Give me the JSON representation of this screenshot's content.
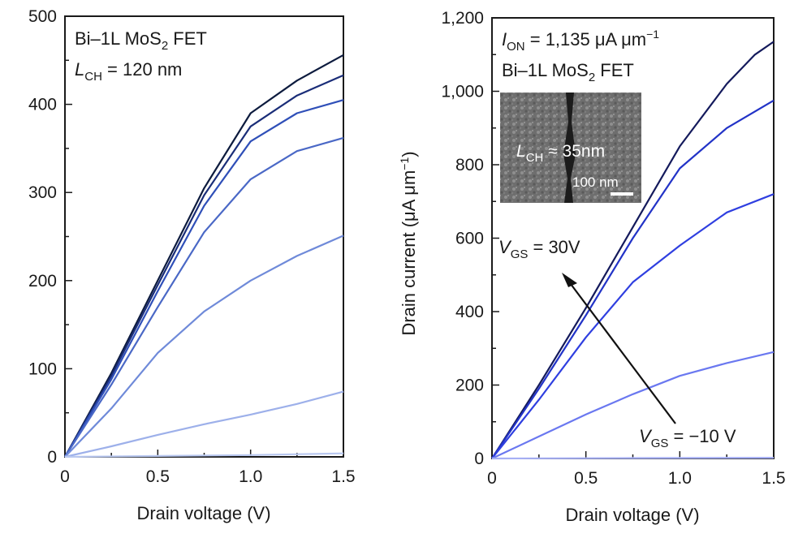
{
  "colors": {
    "c_dark": "#0d1b3e",
    "c_navy": "#1a2d78",
    "c_blue": "#2f4fb8",
    "c_mid": "#4a68c6",
    "c_light": "#6f8ad9",
    "c_pale": "#9db0ea",
    "c_faint": "#b9c8f0",
    "r_dark": "#141a5c",
    "r_blue": "#2233c7",
    "r_bright": "#2f3fe0",
    "r_light": "#6a78f0",
    "r_faint": "#a7b0f5"
  },
  "chart_data": [
    {
      "type": "line",
      "xlabel": "Drain voltage (V)",
      "ylabel": "",
      "xlim": [
        0,
        1.5
      ],
      "ylim": [
        0,
        500
      ],
      "x_ticks": [
        "0",
        "0.5",
        "1.0",
        "1.5"
      ],
      "y_ticks": [
        "0",
        "100",
        "200",
        "300",
        "400",
        "500"
      ],
      "annotations": {
        "device_line1": "Bi–1L MoS",
        "device_sub": "2",
        "device_line1_tail": " FET",
        "lch_main": "L",
        "lch_sub": "CH",
        "lch_value": " = 120 nm"
      },
      "series": [
        {
          "color_key": "c_dark",
          "x": [
            0,
            0.25,
            0.5,
            0.75,
            1.0,
            1.25,
            1.5
          ],
          "values": [
            0,
            95,
            200,
            305,
            390,
            427,
            456
          ]
        },
        {
          "color_key": "c_navy",
          "x": [
            0,
            0.25,
            0.5,
            0.75,
            1.0,
            1.25,
            1.5
          ],
          "values": [
            0,
            92,
            195,
            297,
            375,
            410,
            433
          ]
        },
        {
          "color_key": "c_blue",
          "x": [
            0,
            0.25,
            0.5,
            0.75,
            1.0,
            1.25,
            1.5
          ],
          "values": [
            0,
            88,
            188,
            285,
            358,
            390,
            405
          ]
        },
        {
          "color_key": "c_mid",
          "x": [
            0,
            0.25,
            0.5,
            0.75,
            1.0,
            1.25,
            1.5
          ],
          "values": [
            0,
            82,
            170,
            255,
            315,
            347,
            362
          ]
        },
        {
          "color_key": "c_light",
          "x": [
            0,
            0.25,
            0.5,
            0.75,
            1.0,
            1.25,
            1.5
          ],
          "values": [
            0,
            55,
            118,
            165,
            200,
            228,
            251
          ]
        },
        {
          "color_key": "c_pale",
          "x": [
            0,
            0.25,
            0.5,
            0.75,
            1.0,
            1.25,
            1.5
          ],
          "values": [
            0,
            12,
            25,
            37,
            48,
            60,
            74
          ]
        },
        {
          "color_key": "c_faint",
          "x": [
            0,
            0.5,
            1.0,
            1.5
          ],
          "values": [
            0,
            1,
            2,
            4
          ]
        }
      ]
    },
    {
      "type": "line",
      "xlabel": "Drain voltage (V)",
      "ylabel": "Drain current (μA μm",
      "ylabel_sup": "−1",
      "ylabel_tail": ")",
      "xlim": [
        0,
        1.5
      ],
      "ylim": [
        0,
        1200
      ],
      "x_ticks": [
        "0",
        "0.5",
        "1.0",
        "1.5"
      ],
      "y_ticks": [
        "0",
        "200",
        "400",
        "600",
        "800",
        "1,000",
        "1,200"
      ],
      "annotations": {
        "ion_main": "I",
        "ion_sub": "ON",
        "ion_value": " = 1,135 μA μm",
        "ion_sup": "−1",
        "device_line1": "Bi–1L MoS",
        "device_sub": "2",
        "device_line1_tail": " FET",
        "vgs_top_main": "V",
        "vgs_top_sub": "GS",
        "vgs_top_value": " = 30V",
        "vgs_bottom_main": "V",
        "vgs_bottom_sub": "GS",
        "vgs_bottom_value": " = −10 V",
        "inset_lch_main": "L",
        "inset_lch_sub": "CH",
        "inset_lch_value": " ≈ 35nm",
        "inset_scale": "100 nm"
      },
      "series": [
        {
          "color_key": "r_dark",
          "x": [
            0,
            0.25,
            0.5,
            0.75,
            1.0,
            1.25,
            1.4,
            1.5
          ],
          "values": [
            0,
            200,
            410,
            630,
            850,
            1020,
            1100,
            1135
          ]
        },
        {
          "color_key": "r_blue",
          "x": [
            0,
            0.25,
            0.5,
            0.75,
            1.0,
            1.25,
            1.5
          ],
          "values": [
            0,
            190,
            390,
            600,
            790,
            900,
            975
          ]
        },
        {
          "color_key": "r_bright",
          "x": [
            0,
            0.25,
            0.5,
            0.75,
            1.0,
            1.25,
            1.5
          ],
          "values": [
            0,
            160,
            330,
            480,
            580,
            670,
            720
          ]
        },
        {
          "color_key": "r_light",
          "x": [
            0,
            0.25,
            0.5,
            0.75,
            1.0,
            1.25,
            1.5
          ],
          "values": [
            0,
            60,
            120,
            175,
            225,
            260,
            290
          ]
        },
        {
          "color_key": "r_faint",
          "x": [
            0,
            0.75,
            1.5
          ],
          "values": [
            0,
            1,
            2
          ]
        }
      ]
    }
  ]
}
